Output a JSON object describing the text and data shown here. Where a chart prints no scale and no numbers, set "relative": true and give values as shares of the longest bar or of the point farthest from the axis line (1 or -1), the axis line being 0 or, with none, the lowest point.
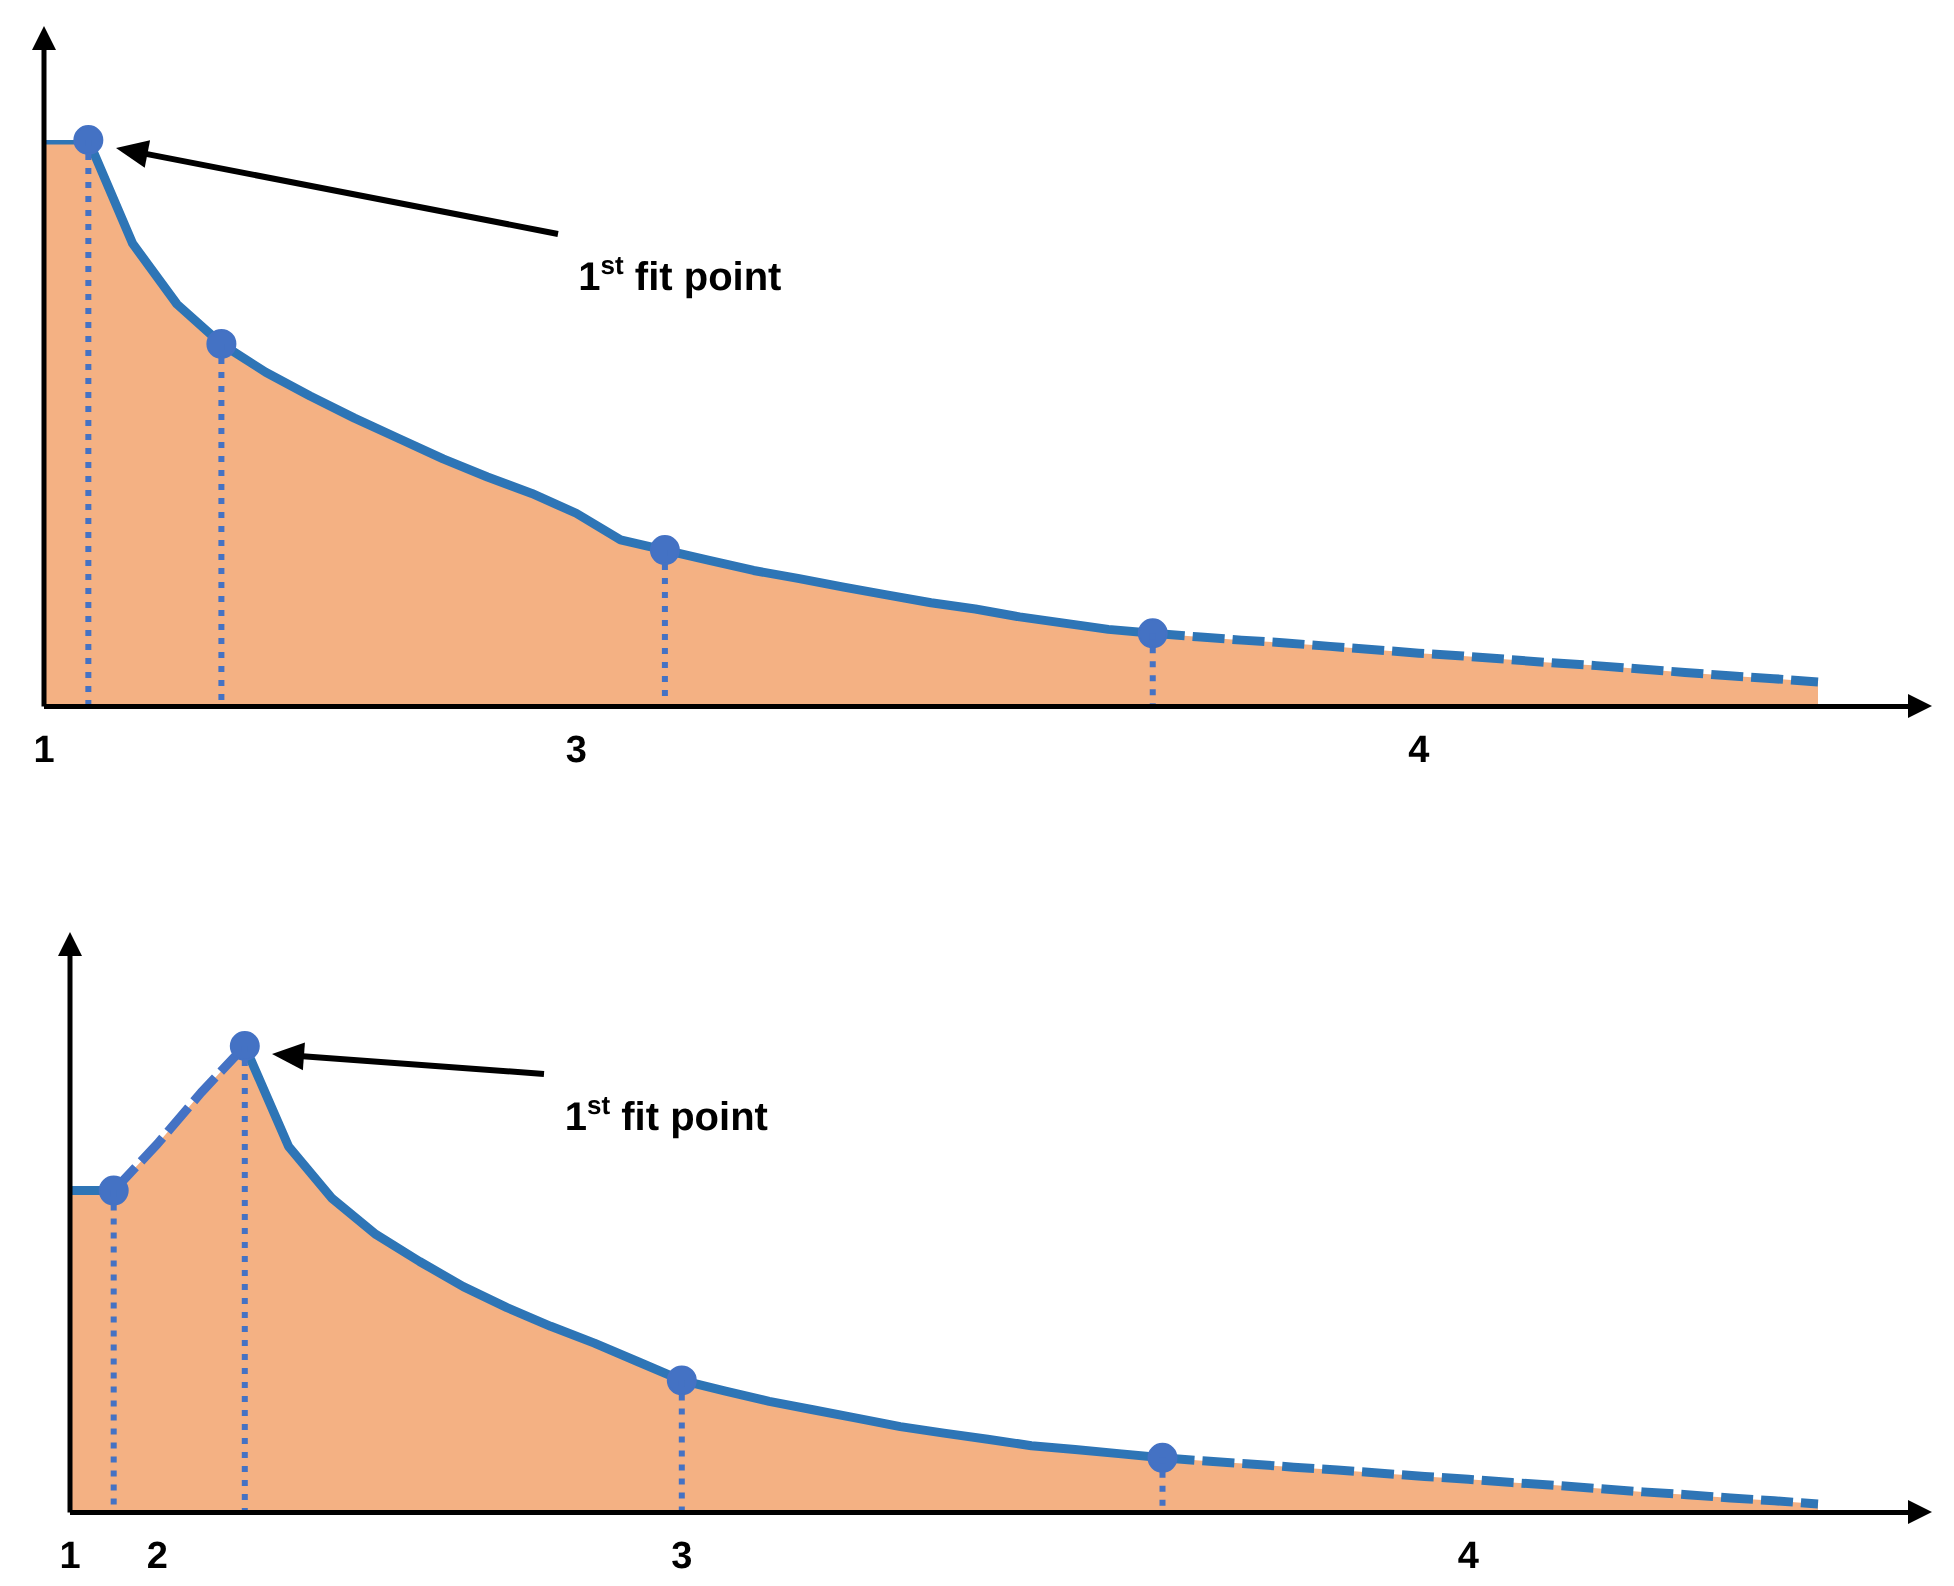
{
  "chart_data": [
    {
      "type": "area",
      "relative": true,
      "legend": false,
      "tick_labels": "x",
      "categories": [
        "1",
        null,
        null,
        null,
        null,
        null,
        null,
        null,
        null,
        null,
        null,
        null,
        "3",
        null,
        null,
        null,
        null,
        null,
        null,
        null,
        null,
        null,
        null,
        null,
        null,
        null,
        null,
        null,
        null,
        null,
        null,
        "4",
        null,
        null,
        null,
        null,
        null,
        null,
        null,
        null,
        null
      ],
      "series": [
        {
          "type": "area",
          "color": "#f4b183",
          "values": [
            1,
            1,
            0.817,
            0.71,
            0.64,
            0.59,
            0.548,
            0.509,
            0.473,
            0.437,
            0.405,
            0.376,
            0.341,
            0.294,
            0.276,
            0.258,
            0.24,
            0.226,
            0.211,
            0.197,
            0.183,
            0.172,
            0.158,
            0.147,
            0.136,
            0.129,
            0.123,
            0.117,
            0.112,
            0.106,
            0.1,
            0.094,
            0.089,
            0.083,
            0.077,
            0.072,
            0.066,
            0.06,
            0.054,
            0.049,
            0.043
          ]
        },
        {
          "type": "line",
          "color": "#2e75b6",
          "line_style": "solid",
          "values": [
            1,
            1,
            0.817,
            0.71,
            0.64,
            0.59,
            0.548,
            0.509,
            0.473,
            0.437,
            0.405,
            0.376,
            0.341,
            0.294,
            0.276,
            0.258,
            0.24,
            0.226,
            0.211,
            0.197,
            0.183,
            0.172,
            0.158,
            0.147,
            0.136,
            0.129,
            null,
            null,
            null,
            null,
            null,
            null,
            null,
            null,
            null,
            null,
            null,
            null,
            null,
            null,
            null
          ]
        },
        {
          "type": "line",
          "color": "#2e75b6",
          "line_style": "dashed",
          "values": [
            null,
            null,
            null,
            null,
            null,
            null,
            null,
            null,
            null,
            null,
            null,
            null,
            null,
            null,
            null,
            null,
            null,
            null,
            null,
            null,
            null,
            null,
            null,
            null,
            null,
            0.129,
            0.123,
            0.117,
            0.112,
            0.106,
            0.1,
            0.094,
            0.089,
            0.083,
            0.077,
            0.072,
            0.066,
            0.06,
            0.054,
            0.049,
            0.043
          ]
        },
        {
          "type": "scatter",
          "color": "#4472c4",
          "marker": "circle",
          "values": [
            null,
            1,
            null,
            null,
            0.64,
            null,
            null,
            null,
            null,
            null,
            null,
            null,
            null,
            null,
            0.276,
            null,
            null,
            null,
            null,
            null,
            null,
            null,
            null,
            null,
            null,
            0.129,
            null,
            null,
            null,
            null,
            null,
            null,
            null,
            null,
            null,
            null,
            null,
            null,
            null,
            null,
            null
          ]
        }
      ],
      "annotations": [
        "1$^{st}$ fit point"
      ]
    },
    {
      "type": "area",
      "relative": true,
      "legend": false,
      "tick_labels": "x",
      "categories": [
        "1",
        null,
        "2",
        null,
        null,
        null,
        null,
        null,
        null,
        null,
        null,
        null,
        null,
        null,
        "3",
        null,
        null,
        null,
        null,
        null,
        null,
        null,
        null,
        null,
        null,
        null,
        null,
        null,
        null,
        null,
        null,
        null,
        "4",
        null,
        null,
        null,
        null,
        null,
        null,
        null,
        null
      ],
      "series": [
        {
          "type": "area",
          "color": "#f4b183",
          "values": [
            0.69,
            0.69,
            0.79,
            0.9,
            1,
            0.785,
            0.673,
            0.596,
            0.538,
            0.484,
            0.439,
            0.399,
            0.363,
            0.323,
            0.283,
            0.26,
            0.238,
            0.22,
            0.202,
            0.184,
            0.17,
            0.157,
            0.143,
            0.135,
            0.126,
            0.117,
            0.11,
            0.104,
            0.097,
            0.091,
            0.084,
            0.077,
            0.071,
            0.064,
            0.058,
            0.051,
            0.044,
            0.038,
            0.031,
            0.025,
            0.018
          ]
        },
        {
          "type": "line",
          "color": "#2e75b6",
          "line_style": "solid",
          "values": [
            0.69,
            0.69,
            null,
            null,
            1,
            0.785,
            0.673,
            0.596,
            0.538,
            0.484,
            0.439,
            0.399,
            0.363,
            0.323,
            0.283,
            0.26,
            0.238,
            0.22,
            0.202,
            0.184,
            0.17,
            0.157,
            0.143,
            0.135,
            0.126,
            0.117,
            null,
            null,
            null,
            null,
            null,
            null,
            null,
            null,
            null,
            null,
            null,
            null,
            null,
            null,
            null
          ]
        },
        {
          "type": "line",
          "color": "#4472c4",
          "line_style": "dashed",
          "values": [
            null,
            0.69,
            0.79,
            0.9,
            1,
            null,
            null,
            null,
            null,
            null,
            null,
            null,
            null,
            null,
            null,
            null,
            null,
            null,
            null,
            null,
            null,
            null,
            null,
            null,
            null,
            null,
            null,
            null,
            null,
            null,
            null,
            null,
            null,
            null,
            null,
            null,
            null,
            null,
            null,
            null,
            null
          ]
        },
        {
          "type": "line",
          "color": "#2e75b6",
          "line_style": "dashed",
          "values": [
            null,
            null,
            null,
            null,
            null,
            null,
            null,
            null,
            null,
            null,
            null,
            null,
            null,
            null,
            null,
            null,
            null,
            null,
            null,
            null,
            null,
            null,
            null,
            null,
            null,
            0.117,
            0.11,
            0.104,
            0.097,
            0.091,
            0.084,
            0.077,
            0.071,
            0.064,
            0.058,
            0.051,
            0.044,
            0.038,
            0.031,
            0.025,
            0.018
          ]
        },
        {
          "type": "scatter",
          "color": "#4472c4",
          "marker": "circle",
          "values": [
            null,
            0.69,
            null,
            null,
            1,
            null,
            null,
            null,
            null,
            null,
            null,
            null,
            null,
            null,
            0.283,
            null,
            null,
            null,
            null,
            null,
            null,
            null,
            null,
            null,
            null,
            0.117,
            null,
            null,
            null,
            null,
            null,
            null,
            null,
            null,
            null,
            null,
            null,
            null,
            null,
            null,
            null
          ]
        }
      ],
      "annotations": [
        "1$^{st}$ fit point"
      ]
    }
  ]
}
